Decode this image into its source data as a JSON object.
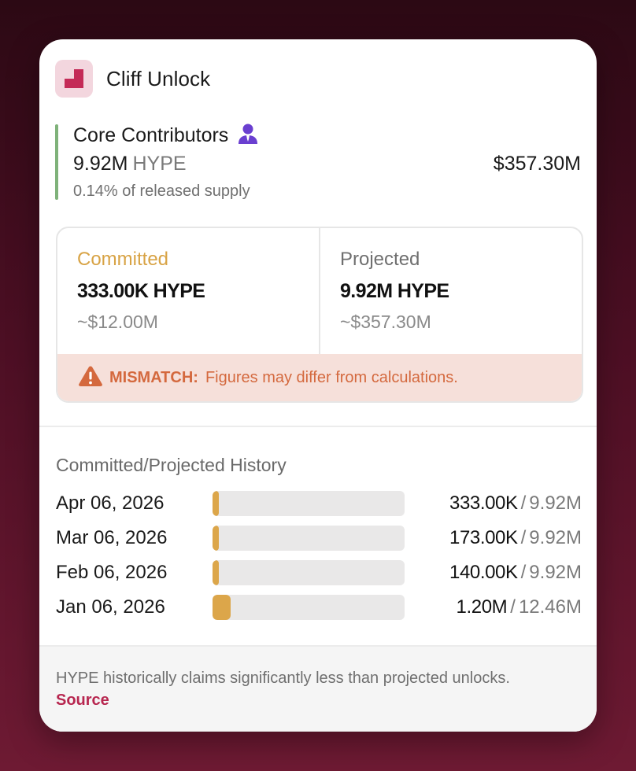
{
  "header": {
    "title": "Cliff Unlock",
    "logo_icon": "unlock-step-icon"
  },
  "recipient": {
    "name": "Core Contributors",
    "icon": "person-icon",
    "amount": "9.92M",
    "unit": "HYPE",
    "supply_note": "0.14% of released supply",
    "usd_value": "$357.30M"
  },
  "comparison": {
    "committed": {
      "label": "Committed",
      "amount": "333.00K HYPE",
      "usd": "~$12.00M"
    },
    "projected": {
      "label": "Projected",
      "amount": "9.92M HYPE",
      "usd": "~$357.30M"
    },
    "warning": {
      "icon": "warning-icon",
      "label": "MISMATCH:",
      "text": "Figures may differ from calculations."
    }
  },
  "history": {
    "title": "Committed/Projected History",
    "rows": [
      {
        "date": "Apr 06, 2026",
        "committed": "333.00K",
        "projected": "9.92M",
        "ratio": 0.034
      },
      {
        "date": "Mar 06, 2026",
        "committed": "173.00K",
        "projected": "9.92M",
        "ratio": 0.017
      },
      {
        "date": "Feb 06, 2026",
        "committed": "140.00K",
        "projected": "9.92M",
        "ratio": 0.014
      },
      {
        "date": "Jan 06, 2026",
        "committed": "1.20M",
        "projected": "12.46M",
        "ratio": 0.096
      }
    ],
    "separator": "/"
  },
  "footer": {
    "text": "HYPE historically claims significantly less than projected unlocks.",
    "link_label": "Source"
  },
  "colors": {
    "committed": "#d8a345",
    "warning": "#d4693e",
    "accent_bar": "#7fb27a",
    "link": "#b7264f"
  }
}
